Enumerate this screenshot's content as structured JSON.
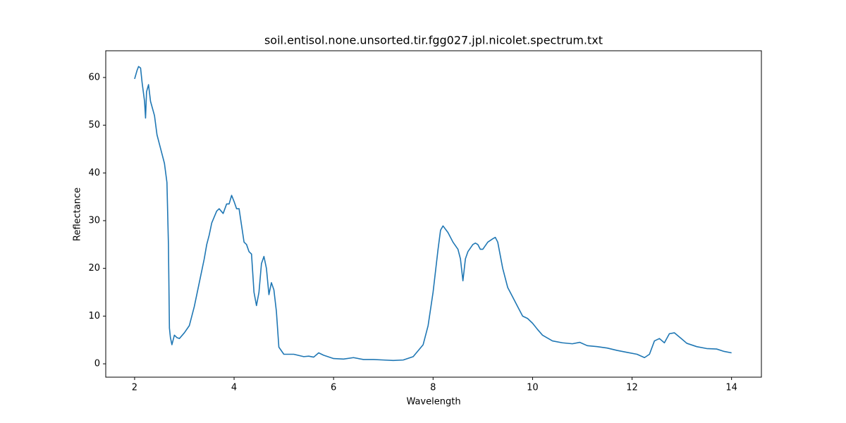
{
  "chart_data": {
    "type": "line",
    "title": "soil.entisol.none.unsorted.tir.fgg027.jpl.nicolet.spectrum.txt",
    "x_label": "Wavelength",
    "y_label": "Reflectance",
    "color": "#1f77b4",
    "x": [
      2.0,
      2.05,
      2.08,
      2.12,
      2.15,
      2.2,
      2.22,
      2.24,
      2.28,
      2.32,
      2.4,
      2.45,
      2.5,
      2.55,
      2.6,
      2.65,
      2.68,
      2.7,
      2.72,
      2.75,
      2.8,
      2.85,
      2.9,
      3.0,
      3.1,
      3.2,
      3.3,
      3.4,
      3.45,
      3.5,
      3.55,
      3.65,
      3.7,
      3.78,
      3.85,
      3.9,
      3.95,
      4.0,
      4.05,
      4.1,
      4.15,
      4.2,
      4.25,
      4.3,
      4.35,
      4.4,
      4.45,
      4.5,
      4.55,
      4.6,
      4.65,
      4.7,
      4.75,
      4.8,
      4.85,
      4.9,
      5.0,
      5.2,
      5.4,
      5.5,
      5.6,
      5.7,
      5.8,
      6.0,
      6.2,
      6.4,
      6.6,
      6.8,
      7.0,
      7.2,
      7.4,
      7.6,
      7.8,
      7.9,
      8.0,
      8.1,
      8.15,
      8.2,
      8.3,
      8.4,
      8.5,
      8.55,
      8.6,
      8.65,
      8.7,
      8.8,
      8.85,
      8.9,
      8.95,
      9.0,
      9.1,
      9.2,
      9.25,
      9.3,
      9.4,
      9.5,
      9.6,
      9.7,
      9.8,
      9.9,
      10.0,
      10.1,
      10.2,
      10.4,
      10.6,
      10.8,
      10.95,
      11.1,
      11.3,
      11.5,
      11.7,
      11.9,
      12.1,
      12.25,
      12.35,
      12.45,
      12.55,
      12.65,
      12.75,
      12.85,
      13.0,
      13.1,
      13.3,
      13.5,
      13.7,
      13.85,
      14.0
    ],
    "values": [
      59.7,
      61.5,
      62.3,
      62,
      59,
      55,
      51.5,
      57,
      58.5,
      55,
      52,
      48,
      46,
      44,
      42,
      38,
      25,
      7.5,
      5.5,
      4,
      6,
      5.5,
      5.3,
      6.5,
      8,
      12,
      17,
      22,
      25,
      27,
      29.5,
      32,
      32.5,
      31.5,
      33.5,
      33.5,
      35.3,
      34,
      32.5,
      32.5,
      29,
      25.5,
      25,
      23.5,
      23,
      15,
      12.2,
      15,
      21,
      22.5,
      20,
      14.5,
      17,
      15.5,
      11,
      3.5,
      2,
      2,
      1.5,
      1.6,
      1.4,
      2.3,
      1.8,
      1.1,
      1.0,
      1.3,
      0.9,
      0.9,
      0.8,
      0.7,
      0.8,
      1.5,
      4,
      8,
      15,
      24,
      28,
      28.9,
      27.5,
      25.5,
      24,
      22,
      17.4,
      22,
      23.5,
      25,
      25.3,
      25,
      24,
      24,
      25.5,
      26.2,
      26.5,
      25.5,
      20,
      16,
      14,
      12,
      10,
      9.5,
      8.5,
      7.2,
      6,
      4.8,
      4.4,
      4.2,
      4.5,
      3.8,
      3.6,
      3.3,
      2.8,
      2.4,
      2.0,
      1.3,
      2,
      4.8,
      5.3,
      4.4,
      6.3,
      6.5,
      5.2,
      4.3,
      3.6,
      3.2,
      3.1,
      2.6,
      2.3
    ],
    "xlim": [
      1.42,
      14.6
    ],
    "ylim": [
      -2.8,
      65.6
    ],
    "xticks": [
      2,
      4,
      6,
      8,
      10,
      12,
      14
    ],
    "yticks": [
      0,
      10,
      20,
      30,
      40,
      50,
      60
    ]
  }
}
